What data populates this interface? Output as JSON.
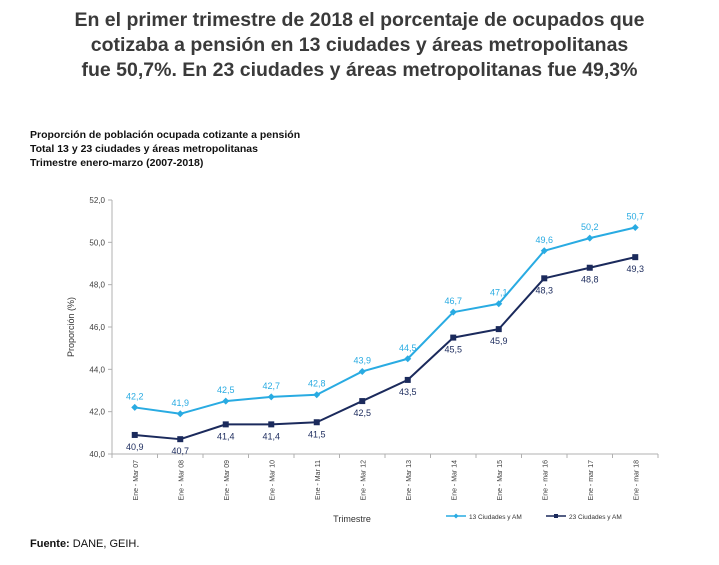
{
  "headline": {
    "line1": "En el primer trimestre de 2018 el porcentaje de ocupados que",
    "line2": "cotizaba a pensión en 13 ciudades y áreas metropolitanas",
    "line3": "fue 50,7%. En 23 ciudades y áreas metropolitanas fue 49,3%"
  },
  "footer": {
    "label": "Fuente:",
    "text": "DANE, GEIH."
  },
  "chart_data": {
    "type": "line",
    "title": "Proporción de población ocupada cotizante a pensión",
    "subtitle_lines": [
      "Total 13 y 23 ciudades y áreas metropolitanas",
      "Trimestre enero-marzo (2007-2018)"
    ],
    "xlabel": "Trimestre",
    "ylabel": "Proporción (%)",
    "ylim": [
      40.0,
      52.0
    ],
    "yticks": [
      "40,0",
      "42,0",
      "44,0",
      "46,0",
      "48,0",
      "50,0",
      "52,0"
    ],
    "ytick_values": [
      40,
      42,
      44,
      46,
      48,
      50,
      52
    ],
    "categories": [
      "Ene - Mar 07",
      "Ene - Mar 08",
      "Ene - Mar 09",
      "Ene - Mar 10",
      "Ene - Mar 11",
      "Ene - Mar 12",
      "Ene - Mar 13",
      "Ene - Mar 14",
      "Ene - Mar 15",
      "Ene - mar 16",
      "Ene - mar 17",
      "Ene - mar 18"
    ],
    "series": [
      {
        "name": "13 Ciudades y AM",
        "color": "#29abe2",
        "marker": "diamond",
        "values": [
          42.2,
          41.9,
          42.5,
          42.7,
          42.8,
          43.9,
          44.5,
          46.7,
          47.1,
          49.6,
          50.2,
          50.7
        ],
        "labels": [
          "42,2",
          "41,9",
          "42,5",
          "42,7",
          "42,8",
          "43,9",
          "44,5",
          "46,7",
          "47,1",
          "49,6",
          "50,2",
          "50,7"
        ]
      },
      {
        "name": "23  Ciudades y AM",
        "color": "#1b2a5c",
        "marker": "square",
        "values": [
          40.9,
          40.7,
          41.4,
          41.4,
          41.5,
          42.5,
          43.5,
          45.5,
          45.9,
          48.3,
          48.8,
          49.3
        ],
        "labels": [
          "40,9",
          "40,7",
          "41,4",
          "41,4",
          "41,5",
          "42,5",
          "43,5",
          "45,5",
          "45,9",
          "48,3",
          "48,8",
          "49,3"
        ]
      }
    ],
    "grid": false,
    "legend_position": "bottom-right"
  }
}
